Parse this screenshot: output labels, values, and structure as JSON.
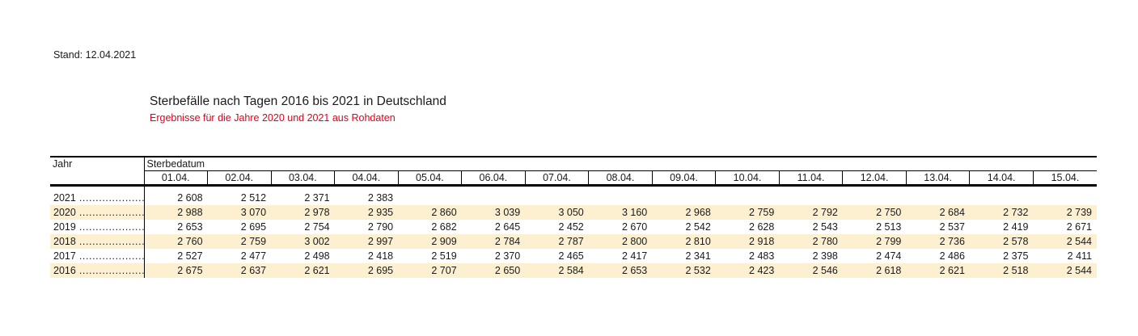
{
  "meta": {
    "stand": "Stand: 12.04.2021"
  },
  "header": {
    "title": "Sterbefälle nach Tagen 2016 bis 2021 in Deutschland",
    "subtitle": "Ergebnisse für die Jahre 2020 und 2021 aus Rohdaten"
  },
  "colors": {
    "highlight_row": "#fdf0d0",
    "subtitle_red": "#e2001a",
    "border": "#000000",
    "text": "#1a1a1a"
  },
  "table": {
    "year_header": "Jahr",
    "group_header": "Sterbedatum",
    "leader_dots": "....................",
    "date_columns": [
      "01.04.",
      "02.04.",
      "03.04.",
      "04.04.",
      "05.04.",
      "06.04.",
      "07.04.",
      "08.04.",
      "09.04.",
      "10.04.",
      "11.04.",
      "12.04.",
      "13.04.",
      "14.04.",
      "15.04."
    ],
    "rows": [
      {
        "year": "2021",
        "highlighted": false,
        "values": [
          "2 608",
          "2 512",
          "2 371",
          "2 383",
          "",
          "",
          "",
          "",
          "",
          "",
          "",
          "",
          "",
          "",
          ""
        ]
      },
      {
        "year": "2020",
        "highlighted": true,
        "values": [
          "2 988",
          "3 070",
          "2 978",
          "2 935",
          "2 860",
          "3 039",
          "3 050",
          "3 160",
          "2 968",
          "2 759",
          "2 792",
          "2 750",
          "2 684",
          "2 732",
          "2 739"
        ]
      },
      {
        "year": "2019",
        "highlighted": false,
        "values": [
          "2 653",
          "2 695",
          "2 754",
          "2 790",
          "2 682",
          "2 645",
          "2 452",
          "2 670",
          "2 542",
          "2 628",
          "2 543",
          "2 513",
          "2 537",
          "2 419",
          "2 671"
        ]
      },
      {
        "year": "2018",
        "highlighted": true,
        "values": [
          "2 760",
          "2 759",
          "3 002",
          "2 997",
          "2 909",
          "2 784",
          "2 787",
          "2 800",
          "2 810",
          "2 918",
          "2 780",
          "2 799",
          "2 736",
          "2 578",
          "2 544"
        ]
      },
      {
        "year": "2017",
        "highlighted": false,
        "values": [
          "2 527",
          "2 477",
          "2 498",
          "2 418",
          "2 519",
          "2 370",
          "2 465",
          "2 417",
          "2 341",
          "2 483",
          "2 398",
          "2 474",
          "2 486",
          "2 375",
          "2 411"
        ]
      },
      {
        "year": "2016",
        "highlighted": true,
        "values": [
          "2 675",
          "2 637",
          "2 621",
          "2 695",
          "2 707",
          "2 650",
          "2 584",
          "2 653",
          "2 532",
          "2 423",
          "2 546",
          "2 618",
          "2 621",
          "2 518",
          "2 544"
        ]
      }
    ]
  }
}
